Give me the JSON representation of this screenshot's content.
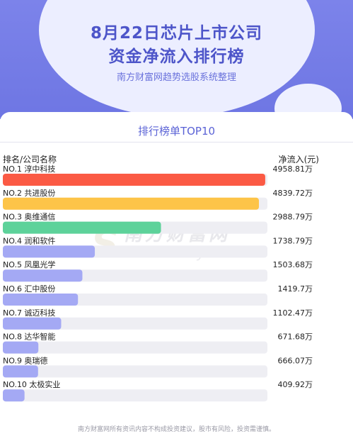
{
  "header": {
    "title_line1": "8月22日芯片上市公司",
    "title_line2": "资金净流入排行榜",
    "subtitle": "南方财富网趋势选股系统整理"
  },
  "panel": {
    "title": "排行榜单TOP10",
    "col_left": "排名/公司名称",
    "col_right": "净流入(元)"
  },
  "watermark": {
    "brand_cn": "南方财富网",
    "brand_en": "outhmoney.com",
    "s": "S"
  },
  "footer": "南方财富网所有资讯内容不构成投资建议，股市有风险，投资需谨慎。",
  "chart_data": {
    "type": "bar",
    "orientation": "horizontal",
    "unit": "万",
    "categories": [
      "NO.1 淳中科技",
      "NO.2 共进股份",
      "NO.3 奥维通信",
      "NO.4 润和软件",
      "NO.5 凤凰光学",
      "NO.6 汇中股份",
      "NO.7 诚迈科技",
      "NO.8 达华智能",
      "NO.9 奥瑞德",
      "NO.10 太极实业"
    ],
    "values": [
      4958.81,
      4839.72,
      2988.79,
      1738.79,
      1503.68,
      1419.7,
      1102.47,
      671.68,
      666.07,
      409.92
    ],
    "value_labels": [
      "4958.81万",
      "4839.72万",
      "2988.79万",
      "1738.79万",
      "1503.68万",
      "1419.7万",
      "1102.47万",
      "671.68万",
      "666.07万",
      "409.92万"
    ],
    "xlim": [
      0,
      5000
    ],
    "colors": [
      "#fb5a44",
      "#fdc448",
      "#5dd29a",
      "#a4a9f4",
      "#a4a9f4",
      "#a4a9f4",
      "#a4a9f4",
      "#a4a9f4",
      "#a4a9f4",
      "#a4a9f4"
    ],
    "track_color": "#eeeef3"
  }
}
